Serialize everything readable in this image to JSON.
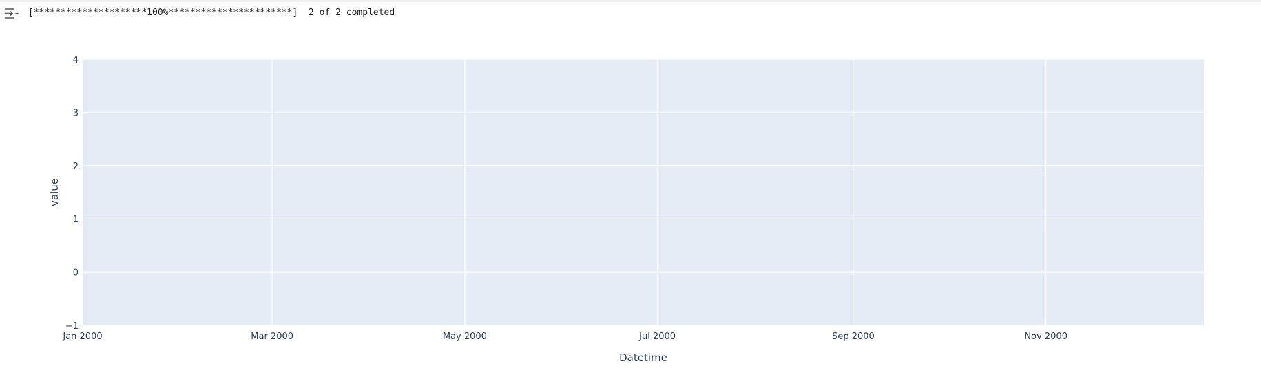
{
  "progress": "[*********************100%***********************]  2 of 2 completed",
  "chart_data": {
    "type": "line",
    "x_label": "Datetime",
    "y_label": "value",
    "series": [],
    "xlim": [
      "2000-01-01",
      "2000-12-21"
    ],
    "xticks": [
      {
        "value": "2000-01",
        "label": "Jan 2000"
      },
      {
        "value": "2000-03",
        "label": "Mar 2000"
      },
      {
        "value": "2000-05",
        "label": "May 2000"
      },
      {
        "value": "2000-07",
        "label": "Jul 2000"
      },
      {
        "value": "2000-09",
        "label": "Sep 2000"
      },
      {
        "value": "2000-11",
        "label": "Nov 2000"
      }
    ],
    "ylim": [
      -1,
      4
    ],
    "yticks": [
      {
        "value": -1,
        "label": "−1"
      },
      0,
      1,
      2,
      3,
      4
    ],
    "grid": true,
    "background": "#e5ecf6"
  }
}
